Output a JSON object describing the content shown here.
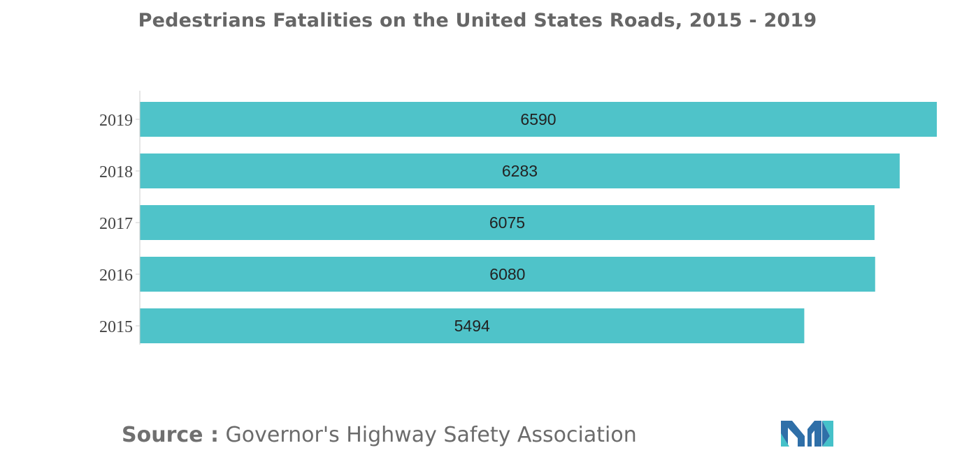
{
  "title": "Pedestrians Fatalities on the United States Roads, 2015 - 2019",
  "source": {
    "label": "Source :",
    "text": "Governor's Highway Safety Association"
  },
  "logo": {
    "icon": "mordor-intelligence-logo",
    "colors": [
      "#2f6fa8",
      "#45c1c9"
    ]
  },
  "colors": {
    "bar": "#4fc3c9",
    "label": "#222222",
    "axis": "#cccccc",
    "title": "#666666",
    "source": "#6b6b6b"
  },
  "chart_data": {
    "type": "bar",
    "orientation": "horizontal",
    "title": "Pedestrians Fatalities on the United States Roads, 2015 - 2019",
    "categories": [
      "2019",
      "2018",
      "2017",
      "2016",
      "2015"
    ],
    "values": [
      6590,
      6283,
      6075,
      6080,
      5494
    ],
    "data_labels": [
      "6590",
      "6283",
      "6075",
      "6080",
      "5494"
    ],
    "xlabel": "",
    "ylabel": "",
    "xlim": [
      0,
      6590
    ],
    "grid": false,
    "legend": "none"
  }
}
